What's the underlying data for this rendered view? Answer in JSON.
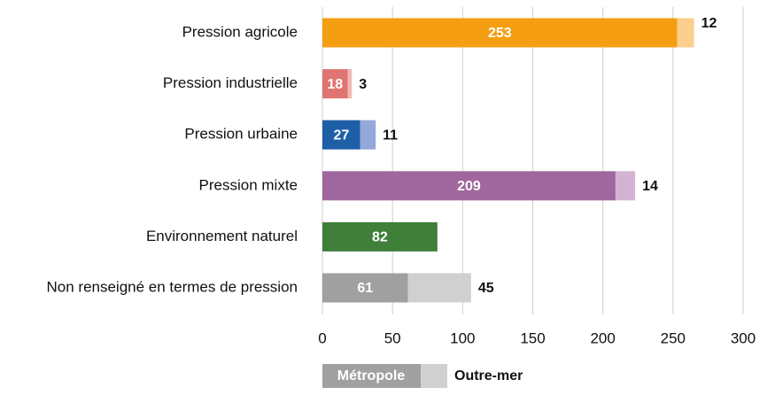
{
  "chart_data": {
    "type": "bar",
    "orientation": "horizontal",
    "stacked": true,
    "categories": [
      "Pression agricole",
      "Pression industrielle",
      "Pression urbaine",
      "Pression mixte",
      "Environnement naturel",
      "Non renseigné en termes de pression"
    ],
    "series": [
      {
        "name": "Métropole",
        "color": "#a0a0a0",
        "colors": [
          "#f59e12",
          "#e07470",
          "#1f5fa8",
          "#a0679e",
          "#3f7f3a",
          "#a0a0a0"
        ],
        "values": [
          253,
          18,
          27,
          209,
          82,
          61
        ]
      },
      {
        "name": "Outre-mer",
        "color": "#d0d0d0",
        "colors": [
          "#fccf8e",
          "#f0b8b5",
          "#93a9d9",
          "#d3b3d2",
          "#a8cfa4",
          "#d0d0d0"
        ],
        "values": [
          12,
          3,
          11,
          14,
          null,
          45
        ]
      }
    ],
    "xlim": [
      0,
      300
    ],
    "xticks": [
      0,
      50,
      100,
      150,
      200,
      250,
      300
    ],
    "grid": true,
    "legend": "bottom"
  }
}
